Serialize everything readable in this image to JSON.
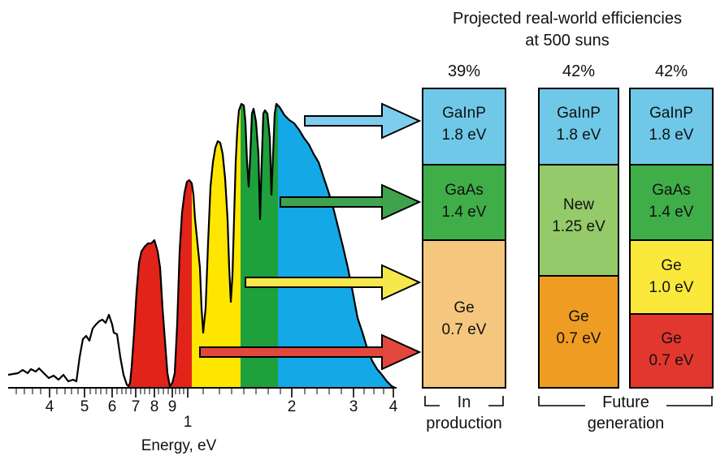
{
  "header": {
    "title_line1": "Projected real-world efficiencies",
    "title_line2": "at 500 suns"
  },
  "stacks": [
    {
      "efficiency": "39%",
      "layers": [
        {
          "name": "GaInP",
          "energy": "1.8 eV",
          "color": "#6fc8e8"
        },
        {
          "name": "GaAs",
          "energy": "1.4 eV",
          "color": "#3fae49"
        },
        {
          "name": "Ge",
          "energy": "0.7 eV",
          "color": "#f5c77e"
        }
      ]
    },
    {
      "efficiency": "42%",
      "layers": [
        {
          "name": "GaInP",
          "energy": "1.8 eV",
          "color": "#6fc8e8"
        },
        {
          "name": "New",
          "energy": "1.25 eV",
          "color": "#95ca6a"
        },
        {
          "name": "Ge",
          "energy": "0.7 eV",
          "color": "#ef9d22"
        }
      ]
    },
    {
      "efficiency": "42%",
      "layers": [
        {
          "name": "GaInP",
          "energy": "1.8 eV",
          "color": "#6fc8e8"
        },
        {
          "name": "GaAs",
          "energy": "1.4 eV",
          "color": "#3fae49"
        },
        {
          "name": "Ge",
          "energy": "1.0 eV",
          "color": "#fae83a"
        },
        {
          "name": "Ge",
          "energy": "0.7 eV",
          "color": "#e2372e"
        }
      ]
    }
  ],
  "groups": {
    "in_production": {
      "line1": "In",
      "line2": "production"
    },
    "future": {
      "line1": "Future",
      "line2": "generation"
    }
  },
  "axis": {
    "xlabel": "Energy, eV",
    "ticks": [
      "4",
      "5",
      "6",
      "7",
      "8",
      "9",
      "1",
      "2",
      "3",
      "4"
    ]
  },
  "spectrum_colors": {
    "red": "#e2231a",
    "yellow": "#ffe600",
    "green": "#1ea03c",
    "blue": "#14a9e6"
  },
  "arrow_colors": [
    "#7fcdee",
    "#3fa34d",
    "#f6e84c",
    "#e2473d"
  ]
}
